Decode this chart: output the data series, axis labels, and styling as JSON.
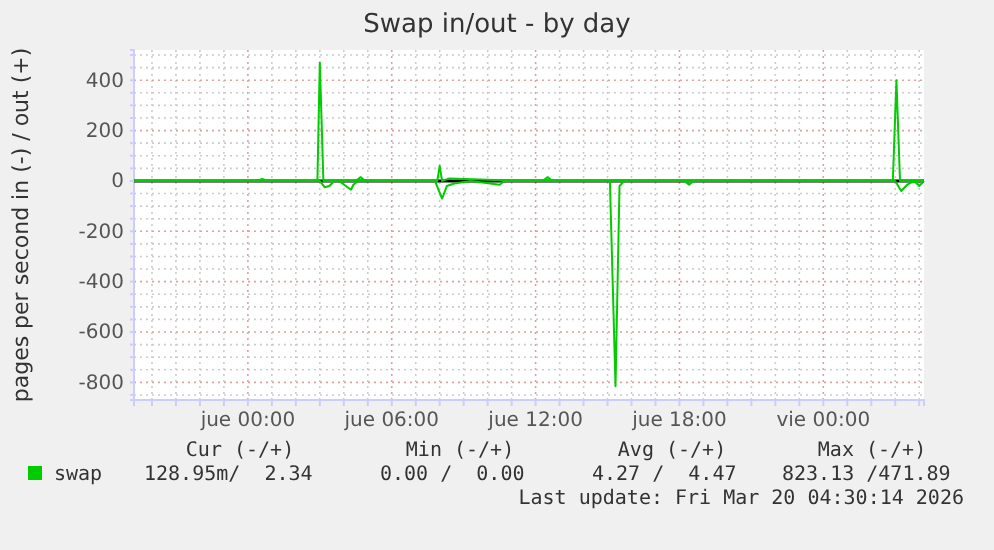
{
  "chart_data": {
    "type": "line",
    "title": "Swap in/out - by day",
    "ylabel": "pages per second in (-) / out (+)",
    "xlim": [
      "2026-03-18T19:15",
      "2026-03-20T04:12"
    ],
    "xticks": [
      {
        "value": "2026-03-18T20:00",
        "label": null
      },
      {
        "value": "2026-03-18T21:00",
        "label": null
      },
      {
        "value": "2026-03-18T22:00",
        "label": null
      },
      {
        "value": "2026-03-18T23:00",
        "label": null
      },
      {
        "value": "2026-03-19T00:00",
        "label": "jue 00:00"
      },
      {
        "value": "2026-03-19T01:00",
        "label": null
      },
      {
        "value": "2026-03-19T02:00",
        "label": null
      },
      {
        "value": "2026-03-19T03:00",
        "label": null
      },
      {
        "value": "2026-03-19T04:00",
        "label": null
      },
      {
        "value": "2026-03-19T05:00",
        "label": null
      },
      {
        "value": "2026-03-19T06:00",
        "label": "jue 06:00"
      },
      {
        "value": "2026-03-19T07:00",
        "label": null
      },
      {
        "value": "2026-03-19T08:00",
        "label": null
      },
      {
        "value": "2026-03-19T09:00",
        "label": null
      },
      {
        "value": "2026-03-19T10:00",
        "label": null
      },
      {
        "value": "2026-03-19T11:00",
        "label": null
      },
      {
        "value": "2026-03-19T12:00",
        "label": "jue 12:00"
      },
      {
        "value": "2026-03-19T13:00",
        "label": null
      },
      {
        "value": "2026-03-19T14:00",
        "label": null
      },
      {
        "value": "2026-03-19T15:00",
        "label": null
      },
      {
        "value": "2026-03-19T16:00",
        "label": null
      },
      {
        "value": "2026-03-19T17:00",
        "label": null
      },
      {
        "value": "2026-03-19T18:00",
        "label": "jue 18:00"
      },
      {
        "value": "2026-03-19T19:00",
        "label": null
      },
      {
        "value": "2026-03-19T20:00",
        "label": null
      },
      {
        "value": "2026-03-19T21:00",
        "label": null
      },
      {
        "value": "2026-03-19T22:00",
        "label": null
      },
      {
        "value": "2026-03-19T23:00",
        "label": null
      },
      {
        "value": "2026-03-20T00:00",
        "label": "vie 00:00"
      },
      {
        "value": "2026-03-20T01:00",
        "label": null
      },
      {
        "value": "2026-03-20T02:00",
        "label": null
      },
      {
        "value": "2026-03-20T03:00",
        "label": null
      },
      {
        "value": "2026-03-20T04:00",
        "label": null
      }
    ],
    "ylim": [
      -870,
      520
    ],
    "yticks": [
      {
        "value": -850,
        "label": null
      },
      -800,
      {
        "value": -750,
        "label": null
      },
      {
        "value": -700,
        "label": null
      },
      {
        "value": -650,
        "label": null
      },
      -600,
      {
        "value": -550,
        "label": null
      },
      {
        "value": -500,
        "label": null
      },
      {
        "value": -450,
        "label": null
      },
      -400,
      {
        "value": -350,
        "label": null
      },
      {
        "value": -300,
        "label": null
      },
      {
        "value": -250,
        "label": null
      },
      -200,
      {
        "value": -150,
        "label": null
      },
      {
        "value": -100,
        "label": null
      },
      {
        "value": -50,
        "label": null
      },
      0,
      {
        "value": 50,
        "label": null
      },
      {
        "value": 100,
        "label": null
      },
      {
        "value": 150,
        "label": null
      },
      200,
      {
        "value": 250,
        "label": null
      },
      {
        "value": 300,
        "label": null
      },
      {
        "value": 350,
        "label": null
      },
      400,
      {
        "value": 450,
        "label": null
      },
      {
        "value": 500,
        "label": null
      }
    ],
    "grid": true,
    "legend": "bottom left",
    "marker": "none",
    "line_style": "solid",
    "ref_lines": [
      {
        "axis": "y",
        "value": 0,
        "label": null,
        "color": "#000000"
      }
    ],
    "series": [
      {
        "name": "swap",
        "color": "#00cc00",
        "x": [
          "2026-03-18T19:15",
          "2026-03-18T23:00",
          "2026-03-19T00:24",
          "2026-03-19T00:36",
          "2026-03-19T00:48",
          "2026-03-19T02:54",
          "2026-03-19T03:00",
          "2026-03-19T03:09",
          "2026-03-19T03:18",
          "2026-03-19T04:30",
          "2026-03-19T04:42",
          "2026-03-19T04:54",
          "2026-03-19T07:30",
          "2026-03-19T07:54",
          "2026-03-19T08:00",
          "2026-03-19T08:06",
          "2026-03-19T08:24",
          "2026-03-19T11:30",
          "2026-03-19T12:18",
          "2026-03-19T12:30",
          "2026-03-19T12:42",
          "2026-03-19T15:00",
          "2026-03-19T20:00",
          "2026-03-20T01:00",
          "2026-03-20T02:54",
          "2026-03-20T03:03",
          "2026-03-20T03:12",
          "2026-03-20T03:21",
          "2026-03-20T04:12"
        ],
        "values": [
          0,
          0,
          0,
          8,
          0,
          0,
          470,
          0,
          0,
          0,
          15,
          0,
          0,
          0,
          60,
          0,
          10,
          0,
          0,
          15,
          0,
          0,
          0,
          0,
          0,
          400,
          0,
          0,
          0
        ]
      },
      {
        "color": "#00cc00",
        "x": [
          "2026-03-18T19:15",
          "2026-03-19T01:30",
          "2026-03-19T03:00",
          "2026-03-19T03:12",
          "2026-03-19T03:24",
          "2026-03-19T03:36",
          "2026-03-19T03:48",
          "2026-03-19T04:18",
          "2026-03-19T04:24",
          "2026-03-19T04:36",
          "2026-03-19T07:48",
          "2026-03-19T08:06",
          "2026-03-19T08:18",
          "2026-03-19T08:36",
          "2026-03-19T09:18",
          "2026-03-19T10:30",
          "2026-03-19T10:42",
          "2026-03-19T15:06",
          "2026-03-19T15:20",
          "2026-03-19T15:30",
          "2026-03-19T15:42",
          "2026-03-19T18:12",
          "2026-03-19T18:24",
          "2026-03-19T18:36",
          "2026-03-20T03:00",
          "2026-03-20T03:15",
          "2026-03-20T03:30",
          "2026-03-20T03:48",
          "2026-03-20T04:00",
          "2026-03-20T04:12"
        ],
        "values": [
          0,
          0,
          0,
          -25,
          -20,
          0,
          0,
          -35,
          -15,
          0,
          0,
          -70,
          -20,
          -10,
          0,
          -15,
          0,
          0,
          -815,
          -20,
          0,
          0,
          -15,
          0,
          0,
          -40,
          -15,
          0,
          -20,
          0
        ]
      }
    ],
    "annotations": [
      "Cur (-/+)",
      "Min (-/+)",
      "Avg (-/+)",
      "Max (-/+)",
      "128.95m/  2.34",
      "0.00 /  0.00",
      "4.27 /  4.47",
      "823.13 /471.89",
      "Last update: Fri Mar 20 04:30:14 2026"
    ]
  }
}
